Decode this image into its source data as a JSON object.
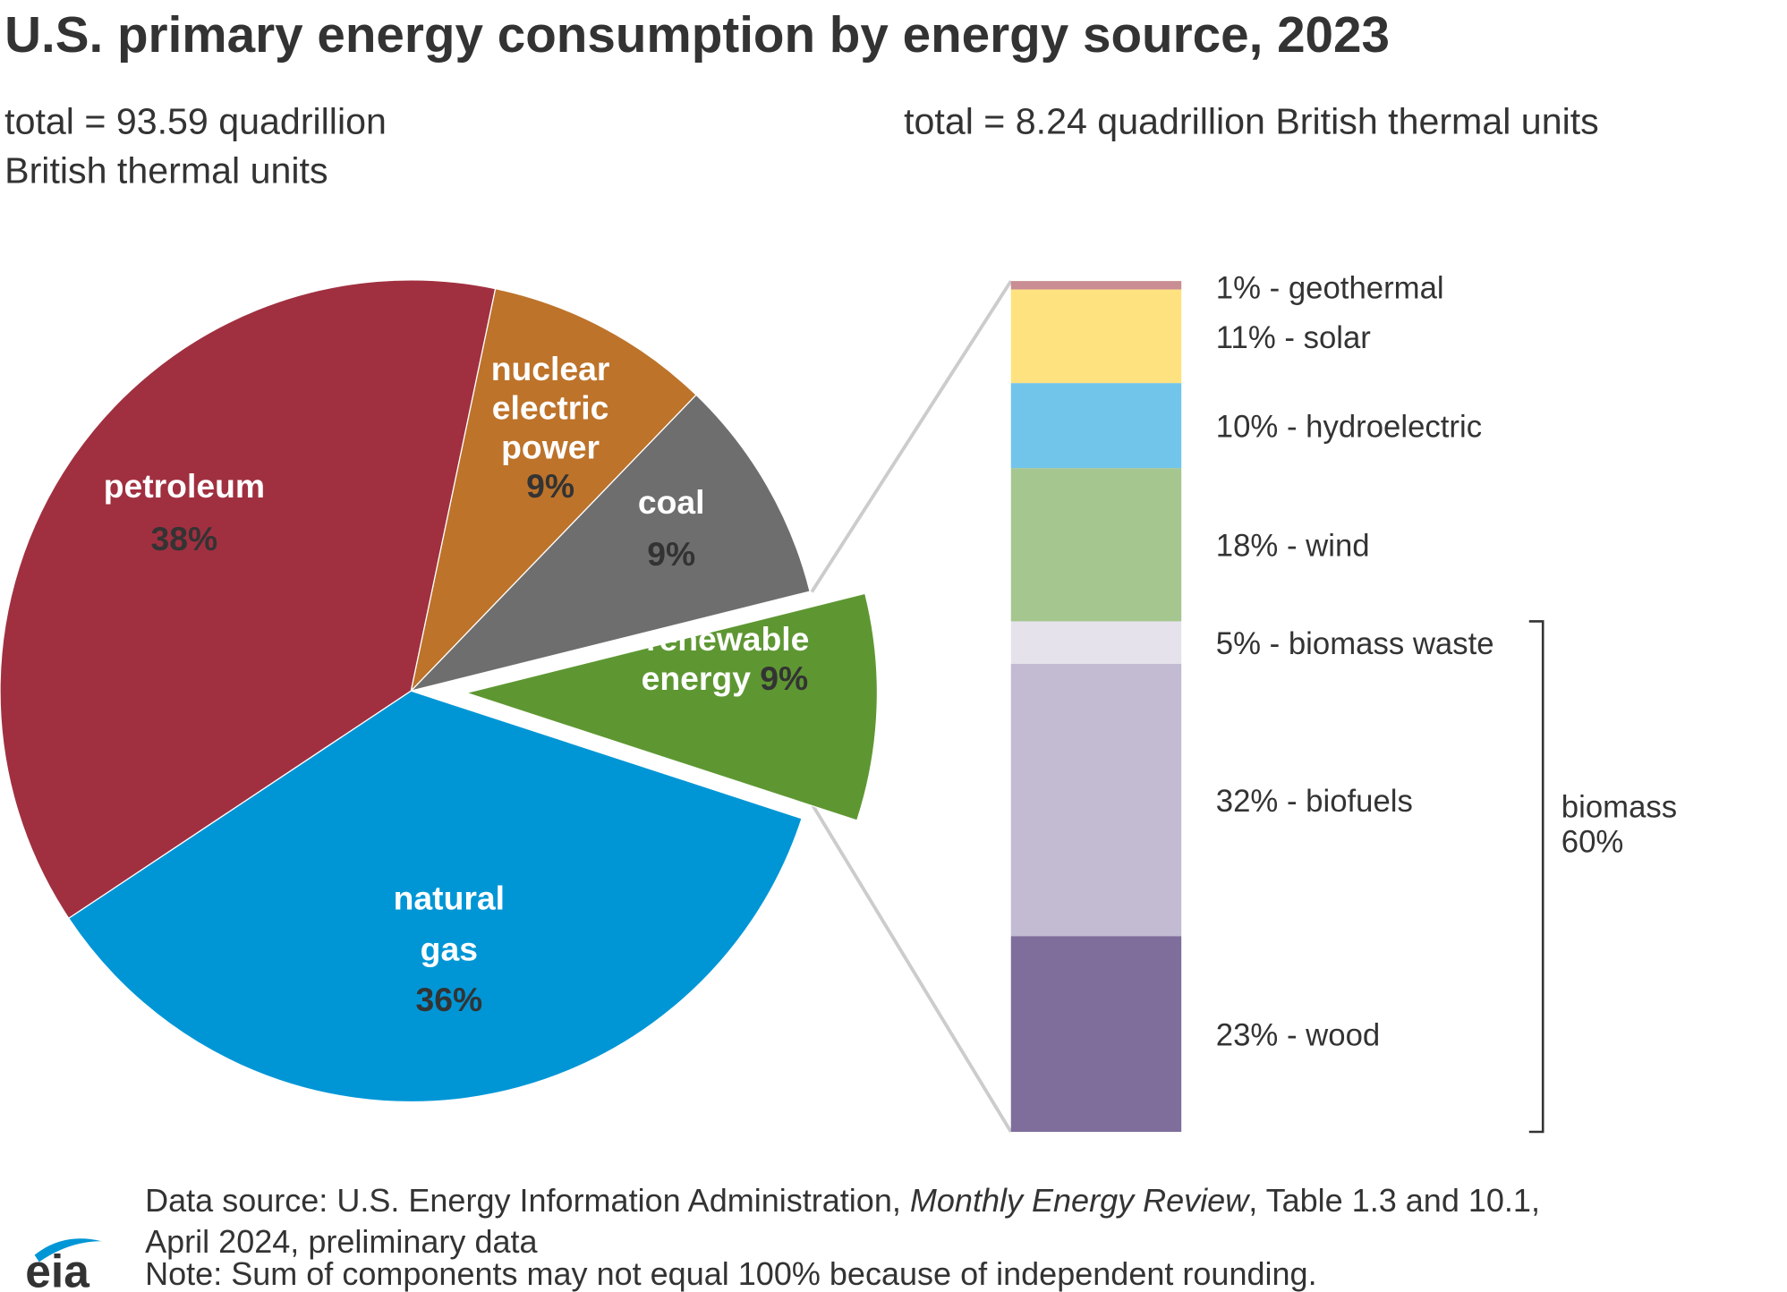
{
  "title": "U.S. primary energy consumption by energy source, 2023",
  "chart_data": [
    {
      "type": "pie",
      "subtitle": [
        "total = 93.59 quadrillion",
        "British thermal units"
      ],
      "categories": [
        "petroleum",
        "nuclear electric power",
        "coal",
        "renewable energy",
        "natural gas"
      ],
      "values": [
        38,
        9,
        9,
        9,
        36
      ],
      "value_labels": [
        "38%",
        "9%",
        "9%",
        "9%",
        "36%"
      ],
      "colors": [
        "#a03040",
        "#bd732a",
        "#6e6e6e",
        "#5e9732",
        "#0096d6"
      ],
      "exploded": "renewable energy"
    },
    {
      "type": "stacked-bar",
      "subtitle": [
        "total = 8.24 quadrillion British thermal units"
      ],
      "values": [
        1,
        11,
        10,
        18,
        5,
        32,
        23
      ],
      "value_labels": [
        "1% - geothermal",
        "11% - solar",
        "10% - hydroelectric",
        "18% - wind",
        "5% - biomass waste",
        "32% - biofuels",
        "23% - wood"
      ],
      "colors": [
        "#c98d93",
        "#fde27f",
        "#72c5ea",
        "#a6c68f",
        "#e5e2ec",
        "#c3bbd2",
        "#7f6e9c"
      ],
      "bracket": {
        "label": "biomass",
        "value": 60,
        "value_label": "60%"
      }
    }
  ],
  "source": {
    "before": "Data source: U.S. Energy Information Administration, ",
    "italic": "Monthly Energy Review",
    "after": ", Table 1.3 and 10.1,",
    "line2": "April 2024, preliminary data"
  },
  "note": "Note: Sum of components may not equal 100% because of independent rounding.",
  "logo": "eia"
}
